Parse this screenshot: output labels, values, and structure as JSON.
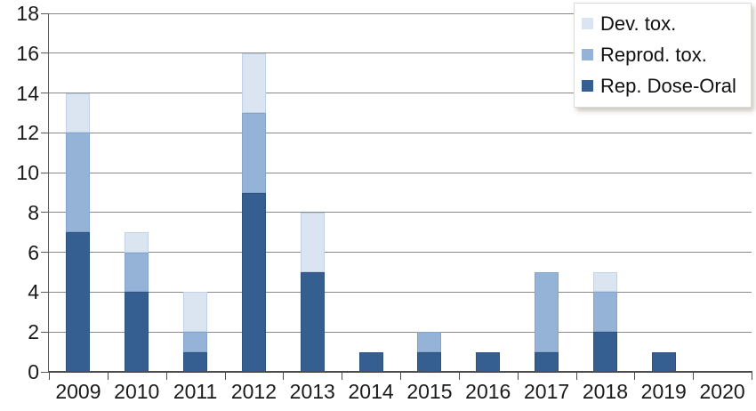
{
  "chart_data": {
    "type": "bar",
    "stacked": true,
    "categories": [
      "2009",
      "2010",
      "2011",
      "2012",
      "2013",
      "2014",
      "2015",
      "2016",
      "2017",
      "2018",
      "2019",
      "2020"
    ],
    "series": [
      {
        "name": "Rep. Dose-Oral",
        "color": "#365F91",
        "border_color": "#2e527e",
        "values": [
          7,
          4,
          1,
          9,
          5,
          1,
          1,
          1,
          1,
          2,
          1,
          0
        ]
      },
      {
        "name": "Reprod. tox.",
        "color": "#95B3D7",
        "border_color": "#83a4cb",
        "values": [
          5,
          2,
          1,
          4,
          0,
          0,
          1,
          0,
          4,
          2,
          0,
          0
        ]
      },
      {
        "name": "Dev. tox.",
        "color": "#DBE5F1",
        "border_color": "#c1d2e6",
        "values": [
          2,
          1,
          2,
          3,
          3,
          0,
          0,
          0,
          0,
          1,
          0,
          0
        ]
      }
    ],
    "totals": [
      14,
      7,
      4,
      16,
      8,
      1,
      2,
      1,
      5,
      5,
      1,
      0
    ],
    "ylim": [
      0,
      18
    ],
    "yticks": [
      0,
      2,
      4,
      6,
      8,
      10,
      12,
      14,
      16,
      18
    ],
    "grid": true,
    "legend_position": "top-right",
    "legend_order": [
      "Dev. tox.",
      "Reprod. tox.",
      "Rep. Dose-Oral"
    ],
    "style": {
      "gridline_color": "#8a8a8a",
      "axis_color": "#4d4d4d",
      "label_color": "#1a1a1a",
      "background_color": "#ffffff"
    }
  }
}
